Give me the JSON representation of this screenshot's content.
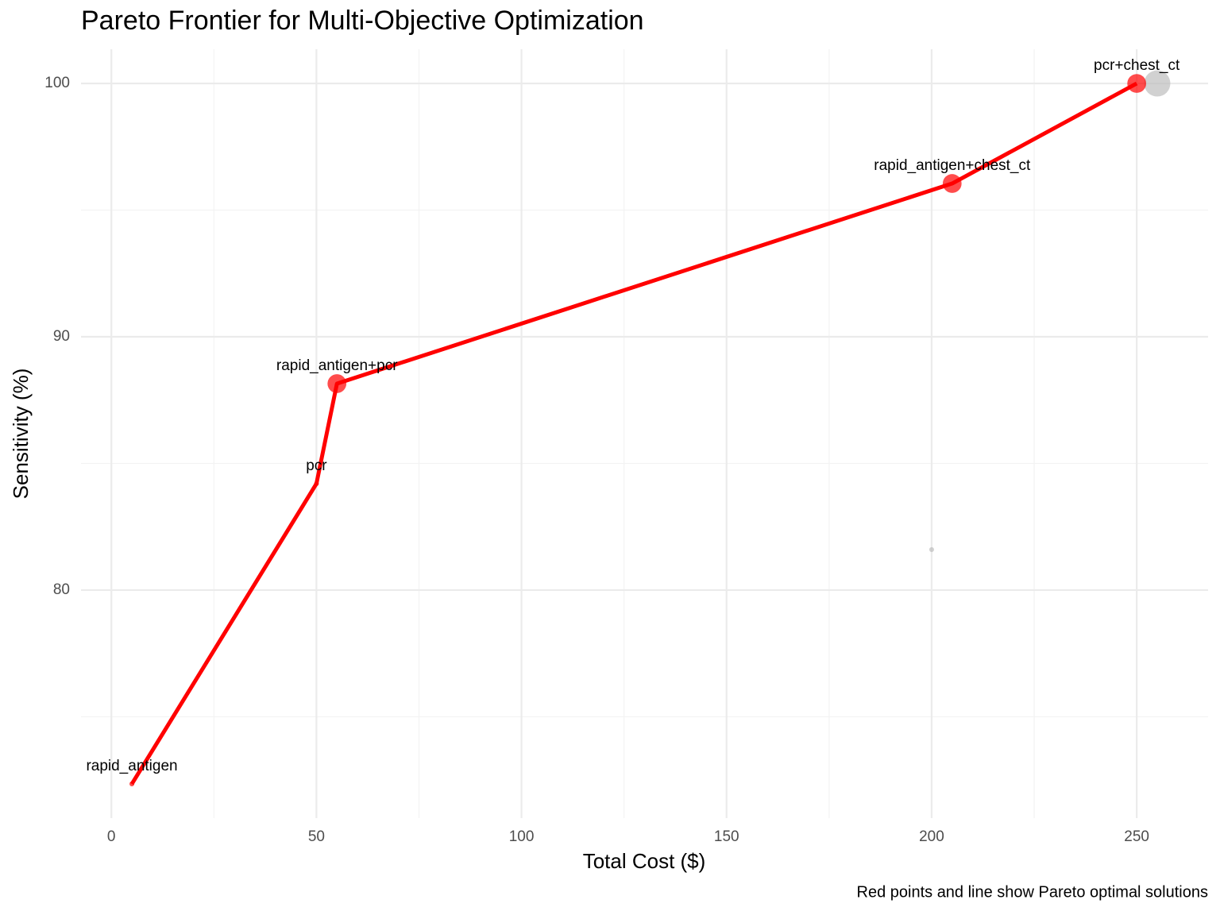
{
  "chart_data": {
    "type": "scatter",
    "title": "Pareto Frontier for Multi-Objective Optimization",
    "x_label": "Total Cost ($)",
    "y_label": "Sensitivity (%)",
    "caption": "Red points and line show Pareto optimal solutions",
    "x": [
      5,
      50,
      55,
      205,
      250,
      200,
      255
    ],
    "values": [
      72.35,
      84.2,
      88.15,
      96.05,
      100,
      81.6,
      100
    ],
    "sizes": [
      1,
      1,
      2,
      2,
      2,
      1,
      3
    ],
    "labels": [
      "rapid_antigen",
      "pcr",
      "rapid_antigen+pcr",
      "rapid_antigen+chest_ct",
      "pcr+chest_ct",
      null,
      null
    ],
    "pareto": [
      true,
      true,
      true,
      true,
      true,
      false,
      false
    ],
    "pareto_color": "#ff0000",
    "other_color": "#bebebe",
    "xlim": [
      -7.4,
      267.4
    ],
    "ylim": [
      71.0,
      101.35
    ],
    "xticks": [
      0,
      50,
      100,
      150,
      200,
      250
    ],
    "yticks": [
      80,
      90,
      100
    ],
    "x_minor_ticks": [
      25,
      75,
      125,
      175,
      225
    ],
    "y_minor_ticks": [
      75,
      85,
      95
    ],
    "grid": true
  }
}
